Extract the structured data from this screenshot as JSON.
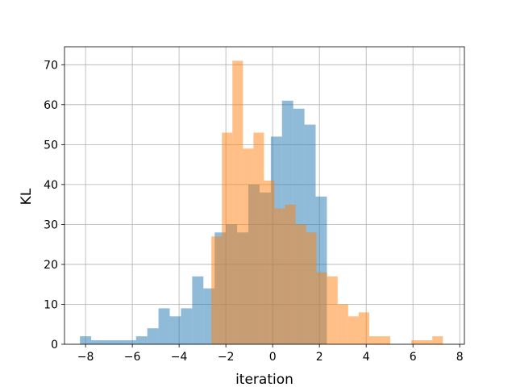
{
  "chart_data": {
    "type": "bar",
    "subtype": "overlaid-histogram",
    "title": "",
    "xlabel": "iteration",
    "ylabel": "KL",
    "xlim": [
      -8.9,
      8.2
    ],
    "ylim": [
      0,
      74.5
    ],
    "xticks": [
      -8,
      -6,
      -4,
      -2,
      0,
      2,
      4,
      6,
      8
    ],
    "xtick_labels": [
      "−8",
      "−6",
      "−4",
      "−2",
      "0",
      "2",
      "4",
      "6",
      "8"
    ],
    "yticks": [
      0,
      10,
      20,
      30,
      40,
      50,
      60,
      70
    ],
    "ytick_labels": [
      "0",
      "10",
      "20",
      "30",
      "40",
      "50",
      "60",
      "70"
    ],
    "grid": true,
    "legend": "none",
    "series": [
      {
        "color": "#1f77b4",
        "alpha": 0.5,
        "bin_edges": [
          -8.24,
          -7.76,
          -7.28,
          -6.8,
          -6.32,
          -5.84,
          -5.36,
          -4.88,
          -4.4,
          -3.92,
          -3.44,
          -2.96,
          -2.48,
          -2.0,
          -1.52,
          -1.04,
          -0.56,
          -0.08,
          0.4,
          0.88,
          1.36,
          1.84,
          2.32
        ],
        "counts": [
          2,
          1,
          1,
          1,
          1,
          2,
          4,
          9,
          7,
          9,
          17,
          14,
          28,
          30,
          28,
          40,
          38,
          52,
          61,
          59,
          55,
          37
        ]
      },
      {
        "color": "#ff7f0e",
        "alpha": 0.5,
        "bin_edges": [
          -2.62,
          -2.17,
          -1.72,
          -1.27,
          -0.82,
          -0.37,
          0.08,
          0.53,
          0.98,
          1.43,
          1.88,
          2.33,
          2.78,
          3.23,
          3.68,
          4.13,
          4.58,
          5.03,
          5.48,
          5.93,
          6.38,
          6.83,
          7.28
        ],
        "counts": [
          27,
          53,
          71,
          49,
          53,
          41,
          34,
          35,
          30,
          28,
          18,
          17,
          10,
          7,
          8,
          2,
          2,
          0,
          0,
          1,
          1,
          2
        ]
      }
    ]
  }
}
